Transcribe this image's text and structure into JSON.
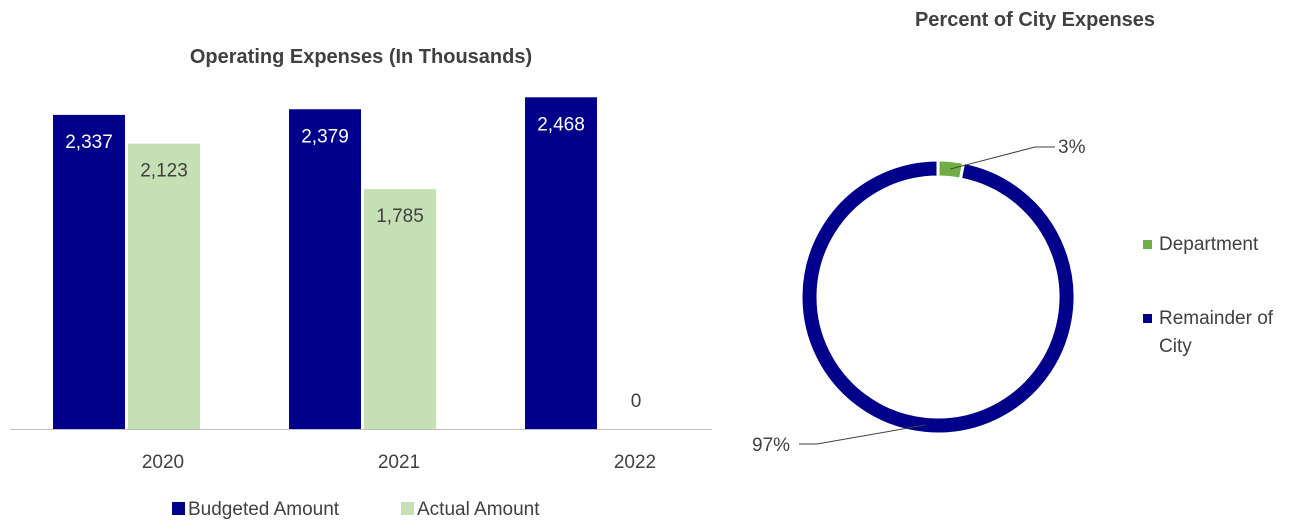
{
  "chart_data": [
    {
      "type": "bar",
      "title": "Operating Expenses (In Thousands)",
      "categories": [
        "2020",
        "2021",
        "2022"
      ],
      "series": [
        {
          "name": "Budgeted Amount",
          "values": [
            2337,
            2379,
            2468
          ],
          "labels": [
            "2,337",
            "2,379",
            "2,468"
          ],
          "color": "#00008B"
        },
        {
          "name": "Actual Amount",
          "values": [
            2123,
            1785,
            0
          ],
          "labels": [
            "2,123",
            "1,785",
            "0"
          ],
          "color": "#C5E0B4"
        }
      ],
      "ylim": [
        0,
        2700
      ],
      "grid": false,
      "legend_position": "bottom"
    },
    {
      "type": "pie",
      "variant": "donut",
      "title": "Percent of City Expenses",
      "slices": [
        {
          "name": "Department",
          "value": 3,
          "label": "3%",
          "color": "#70AD47"
        },
        {
          "name": "Remainder of City",
          "value": 97,
          "label": "97%",
          "color": "#00008B"
        }
      ],
      "legend_position": "right"
    }
  ]
}
